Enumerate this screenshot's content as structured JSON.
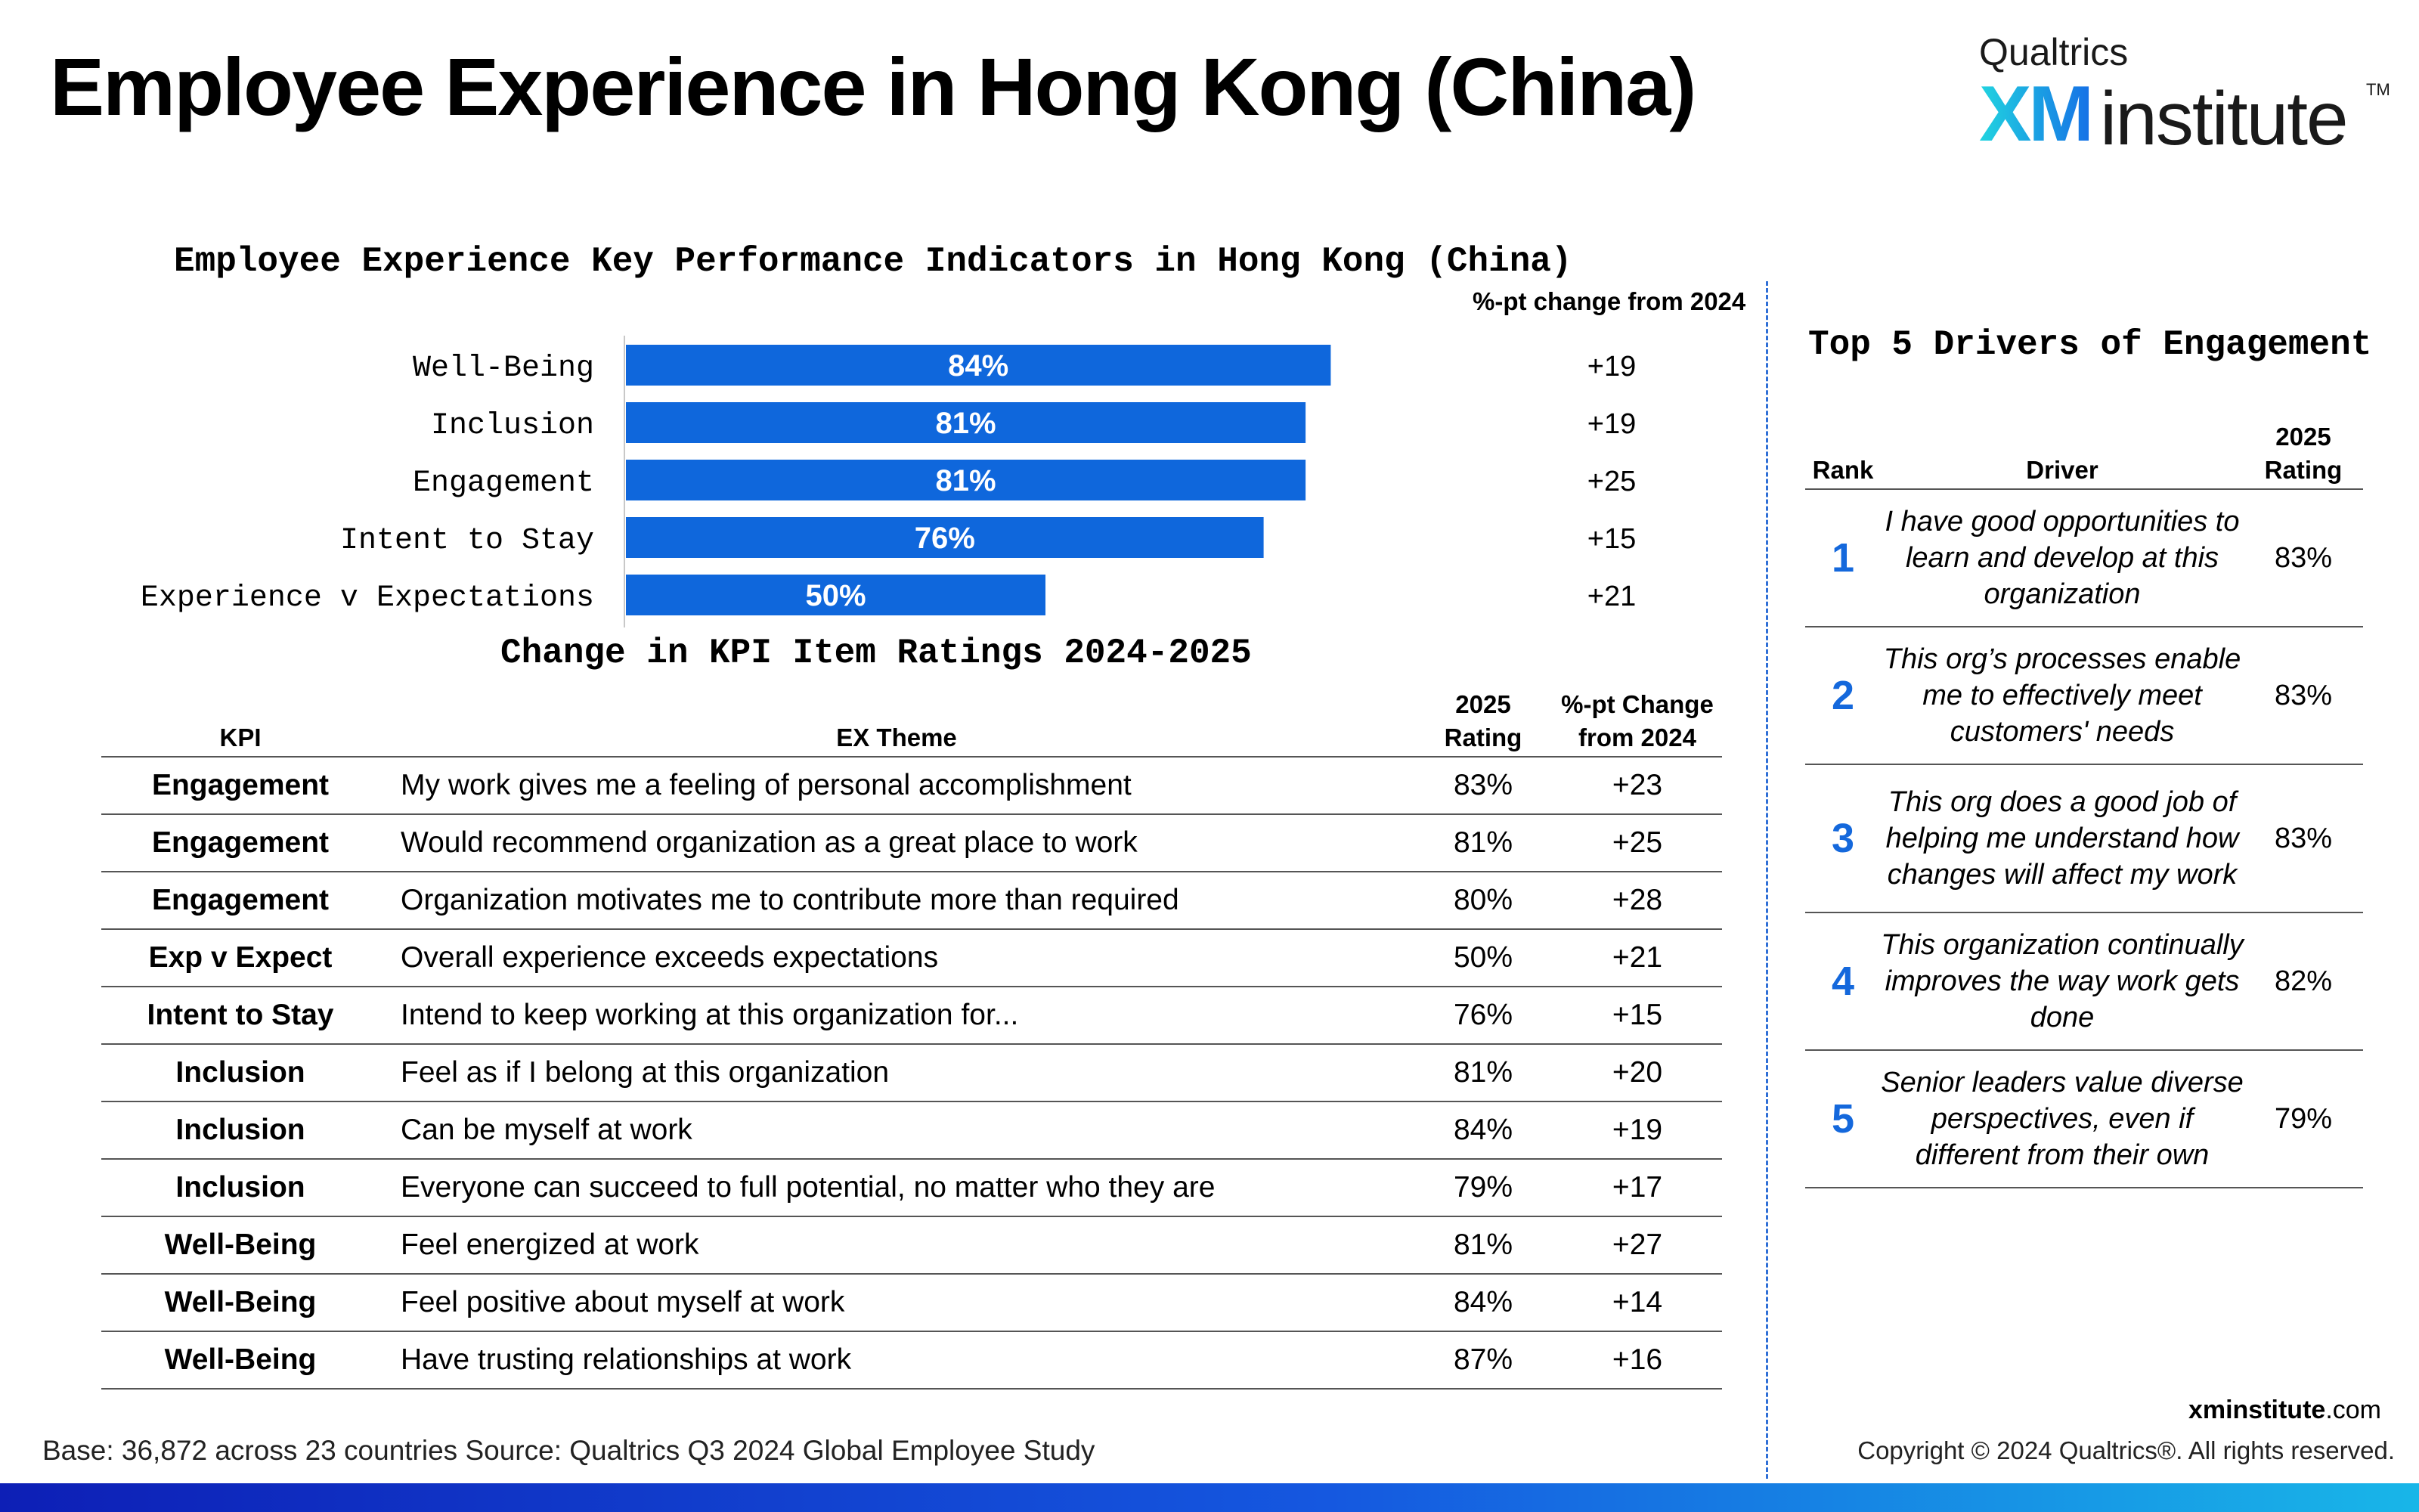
{
  "header": {
    "title": "Employee Experience in Hong Kong (China)",
    "logo_top": "Qualtrics",
    "logo_xm": "XM",
    "logo_institute": "institute",
    "logo_tm": "TM"
  },
  "colors": {
    "bar": "#0f67dc",
    "rank": "#1468dc"
  },
  "chart_data": {
    "type": "bar",
    "orientation": "horizontal",
    "title": "Employee Experience Key Performance Indicators in Hong Kong (China)",
    "categories": [
      "Well-Being",
      "Inclusion",
      "Engagement",
      "Intent to Stay",
      "Experience v Expectations"
    ],
    "values": [
      84,
      81,
      81,
      76,
      50
    ],
    "value_labels": [
      "84%",
      "81%",
      "81%",
      "76%",
      "50%"
    ],
    "change_header": "%-pt change from 2024",
    "changes": [
      "+19",
      "+19",
      "+25",
      "+15",
      "+21"
    ],
    "xlim": [
      0,
      100
    ]
  },
  "change_table": {
    "title": "Change in KPI Item Ratings 2024-2025",
    "headers": {
      "kpi": "KPI",
      "theme": "EX Theme",
      "rating_1": "2025",
      "rating_2": "Rating",
      "change_1": "%-pt Change",
      "change_2": "from 2024"
    },
    "rows": [
      {
        "kpi": "Engagement",
        "theme": "My work gives me a feeling of personal accomplishment",
        "rating": "83%",
        "change": "+23"
      },
      {
        "kpi": "Engagement",
        "theme": "Would recommend organization as a great place to work",
        "rating": "81%",
        "change": "+25"
      },
      {
        "kpi": "Engagement",
        "theme": "Organization motivates me to contribute more than required",
        "rating": "80%",
        "change": "+28"
      },
      {
        "kpi": "Exp v Expect",
        "theme": "Overall experience exceeds expectations",
        "rating": "50%",
        "change": "+21"
      },
      {
        "kpi": "Intent to Stay",
        "theme": "Intend to keep working at this organization for...",
        "rating": "76%",
        "change": "+15"
      },
      {
        "kpi": "Inclusion",
        "theme": "Feel as if I belong at this organization",
        "rating": "81%",
        "change": "+20"
      },
      {
        "kpi": "Inclusion",
        "theme": "Can be myself at work",
        "rating": "84%",
        "change": "+19"
      },
      {
        "kpi": "Inclusion",
        "theme": "Everyone can succeed to full potential, no matter who they are",
        "rating": "79%",
        "change": "+17"
      },
      {
        "kpi": "Well-Being",
        "theme": "Feel energized at work",
        "rating": "81%",
        "change": "+27"
      },
      {
        "kpi": "Well-Being",
        "theme": "Feel positive about myself at work",
        "rating": "84%",
        "change": "+14"
      },
      {
        "kpi": "Well-Being",
        "theme": "Have trusting relationships at work",
        "rating": "87%",
        "change": "+16"
      }
    ]
  },
  "drivers": {
    "title": "Top 5 Drivers of Engagement",
    "headers": {
      "rank": "Rank",
      "driver": "Driver",
      "rating_1": "2025",
      "rating_2": "Rating"
    },
    "rows": [
      {
        "rank": "1",
        "driver": "I have good opportunities to learn and develop at this organization",
        "rating": "83%"
      },
      {
        "rank": "2",
        "driver": "This org’s processes enable me to effectively meet customers' needs",
        "rating": "83%"
      },
      {
        "rank": "3",
        "driver": "This org does a good job of helping me understand how changes will affect my work",
        "rating": "83%"
      },
      {
        "rank": "4",
        "driver": "This organization continually improves the way work gets done",
        "rating": "82%"
      },
      {
        "rank": "5",
        "driver": "Senior leaders value diverse perspectives, even if different from their own",
        "rating": "79%"
      }
    ]
  },
  "footer": {
    "base_label": "Base:",
    "base_value": " 36,872 across 23 countries ",
    "source_label": "Source:",
    "source_value": " Qualtrics Q3 2024 Global Employee Study",
    "site_bold": "xminstitute",
    "site_rest": ".com",
    "copyright": "Copyright © 2024 Qualtrics®. All rights reserved."
  }
}
